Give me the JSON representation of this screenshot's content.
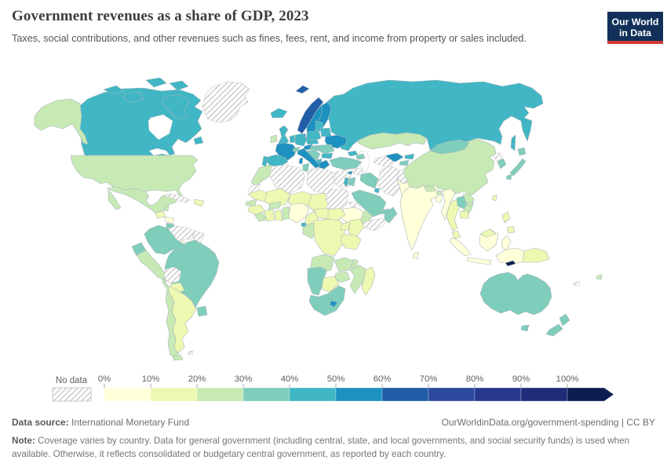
{
  "header": {
    "title": "Government revenues as a share of GDP, 2023",
    "subtitle": "Taxes, social contributions, and other revenues such as fines, fees, rent, and income from property or sales included.",
    "logo": {
      "line1": "Our World",
      "line2": "in Data",
      "bg_color": "#12305a",
      "bar_color": "#cf3a33"
    }
  },
  "chart_data": {
    "type": "heatmap",
    "variant": "choropleth-world-map",
    "title": "Government revenues as a share of GDP, 2023",
    "year": "2023",
    "unit": "% of GDP",
    "no_data_label": "No data",
    "legend_position": "bottom",
    "tick_labels": [
      "0%",
      "10%",
      "20%",
      "30%",
      "40%",
      "50%",
      "60%",
      "70%",
      "80%",
      "90%",
      "100%"
    ],
    "bins": [
      {
        "range": "0-10%",
        "color": "#ffffd9"
      },
      {
        "range": "10-20%",
        "color": "#edf8b1"
      },
      {
        "range": "20-30%",
        "color": "#c7e9b4"
      },
      {
        "range": "30-40%",
        "color": "#7fcdbb"
      },
      {
        "range": "40-50%",
        "color": "#41b6c4"
      },
      {
        "range": "50-60%",
        "color": "#1d91c0"
      },
      {
        "range": "60-70%",
        "color": "#225ea8"
      },
      {
        "range": "70-80%",
        "color": "#2e4a9f"
      },
      {
        "range": "80-90%",
        "color": "#28388f"
      },
      {
        "range": "90-100%",
        "color": "#202c7a"
      },
      {
        "range": "100%+",
        "color": "#0d1d50"
      }
    ],
    "countries": {
      "canada": "40-50%",
      "usa": "20-30%",
      "greenland": "No data",
      "mexico": "20-30%",
      "guatemala": "10-20%",
      "belize": "20-30%",
      "honduras": "0-10%",
      "nicaragua": "30-40%",
      "costa-rica": "10-20%",
      "panama": "0-10%",
      "cuba": "No data",
      "hispaniola": "10-20%",
      "colombia": "30-40%",
      "venezuela": "No data",
      "guyanas": "No data",
      "ecuador": "30-40%",
      "peru": "20-30%",
      "brazil": "30-40%",
      "bolivia": "No data",
      "paraguay": "10-20%",
      "uruguay": "30-40%",
      "argentina": "10-20%",
      "chile": "20-30%",
      "falklands": "No data",
      "iceland": "40-50%",
      "norway": "60-70%",
      "sweden": "50-60%",
      "finland": "50-60%",
      "denmark": "50-60%",
      "baltics": "40-50%",
      "uk": "40-50%",
      "ireland": "20-30%",
      "france": "50-60%",
      "spain": "40-50%",
      "portugal": "40-50%",
      "benelux": "40-50%",
      "germany": "40-50%",
      "switzerland": "30-40%",
      "austria": "50-60%",
      "czechia-slovakia": "40-50%",
      "poland": "40-50%",
      "hungary": "30-40%",
      "romania": "30-40%",
      "bulgaria": "40-50%",
      "balkans": "30-40%",
      "albania": "40-50%",
      "greece": "50-60%",
      "italy": "50-60%",
      "belarus": "40-50%",
      "ukraine": "50-60%",
      "russia": "40-50%",
      "kazakhstan": "20-30%",
      "uzbekistan": "50-60%",
      "turkmenistan": "No data",
      "kyrgyzstan": "40-50%",
      "tajikistan": "30-40%",
      "georgia": "40-50%",
      "azerbaijan": "30-40%",
      "turkey": "30-40%",
      "cyprus": "50-60%",
      "syria": "No data",
      "israel": "40-50%",
      "jordan": "30-40%",
      "iraq": "30-40%",
      "iran": "No data",
      "kuwait": "40-50%",
      "saudi-arabia": "30-40%",
      "yemen": "No data",
      "oman": "30-40%",
      "uae": "30-40%",
      "afghanistan": "No data",
      "pakistan": "0-10%",
      "morocco": "20-30%",
      "western-sahara": "No data",
      "algeria": "No data",
      "tunisia": "30-40%",
      "libya": "No data",
      "egypt": "No data",
      "mauritania": "10-20%",
      "mali": "10-20%",
      "niger": "10-20%",
      "chad": "10-20%",
      "sudan": "No data",
      "eritrea": "No data",
      "ethiopia": "0-10%",
      "somalia": "20-30%",
      "senegal": "20-30%",
      "guinea": "10-20%",
      "sierra-leone-liberia": "20-30%",
      "ivory-coast": "10-20%",
      "burkina-faso": "20-30%",
      "ghana": "10-20%",
      "togo-benin": "20-30%",
      "nigeria": "0-10%",
      "cameroon": "10-20%",
      "central-african-republic": "10-20%",
      "south-sudan": "10-20%",
      "gabon-congo": "20-30%",
      "equatorial-guinea": "40-50%",
      "drc": "10-20%",
      "uganda": "10-20%",
      "kenya": "10-20%",
      "tanzania": "10-20%",
      "angola": "20-30%",
      "zambia": "20-30%",
      "malawi": "20-30%",
      "mozambique": "20-30%",
      "zimbabwe": "20-30%",
      "namibia": "30-40%",
      "botswana": "10-20%",
      "south-africa": "30-40%",
      "lesotho": "50-60%",
      "madagascar": "10-20%",
      "india": "0-10%",
      "nepal": "20-30%",
      "bhutan": "20-30%",
      "bangladesh": "0-10%",
      "sri-lanka": "0-10%",
      "myanmar": "0-10%",
      "thailand": "10-20%",
      "laos": "30-40%",
      "vietnam": "20-30%",
      "cambodia": "10-20%",
      "malaysia": "10-20%",
      "indonesia": "0-10%",
      "papua-new-guinea": "10-20%",
      "philippines": "10-20%",
      "taiwan": "10-20%",
      "timor-leste": "100%+",
      "china": "20-30%",
      "mongolia": "30-40%",
      "north-korea": "No data",
      "south-korea": "30-40%",
      "japan": "30-40%",
      "australia": "30-40%",
      "new-zealand": "30-40%",
      "fiji": "20-30%",
      "new-caledonia": "No data"
    }
  },
  "footer": {
    "source_label": "Data source:",
    "source_value": " International Monetary Fund",
    "citation": "OurWorldinData.org/government-spending | CC BY",
    "note_label": "Note:",
    "note_value": " Coverage varies by country. Data for general government (including central, state, and local governments, and social security funds) is used when available. Otherwise, it reflects consolidated or budgetary central government, as reported by each country."
  }
}
